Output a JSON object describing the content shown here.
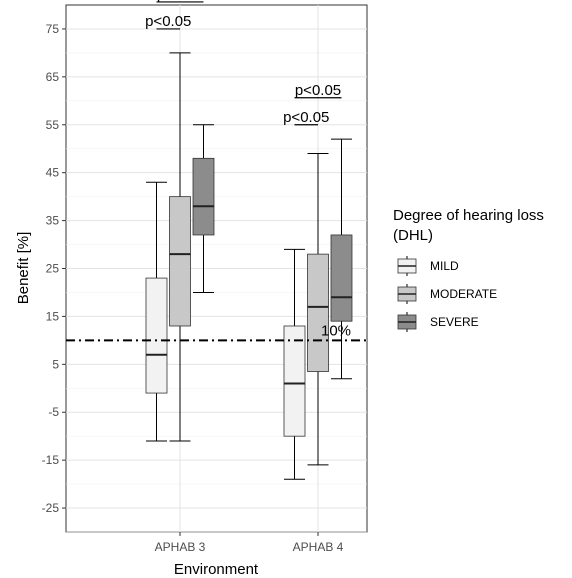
{
  "chart_data": {
    "type": "boxplot",
    "xlabel": "Environment",
    "ylabel": "Benefit [%]",
    "ylim": [
      -30,
      80
    ],
    "yticks": [
      75,
      65,
      55,
      45,
      35,
      25,
      15,
      5,
      -5,
      -15,
      -25
    ],
    "grid": true,
    "legend_placement": "right",
    "categories": [
      "APHAB 3",
      "APHAB 4"
    ],
    "legend": {
      "title_line1": "Degree of hearing loss",
      "title_line2": "(DHL)"
    },
    "series": [
      {
        "name": "MILD",
        "color": "#f2f2f2",
        "boxes": [
          {
            "whisker_low": -11,
            "q1": -1,
            "median": 7,
            "q3": 23,
            "whisker_high": 43
          },
          {
            "whisker_low": -19,
            "q1": -10,
            "median": 1,
            "q3": 13,
            "whisker_high": 29
          }
        ]
      },
      {
        "name": "MODERATE",
        "color": "#c8c8c8",
        "boxes": [
          {
            "whisker_low": -11,
            "q1": 13,
            "median": 28,
            "q3": 40,
            "whisker_high": 70
          },
          {
            "whisker_low": -16,
            "q1": 3.5,
            "median": 17,
            "q3": 28,
            "whisker_high": 49
          }
        ]
      },
      {
        "name": "SEVERE",
        "color": "#8c8c8c",
        "boxes": [
          {
            "whisker_low": 20,
            "q1": 32,
            "median": 38,
            "q3": 48,
            "whisker_high": 55
          },
          {
            "whisker_low": 2,
            "q1": 14,
            "median": 19,
            "q3": 32,
            "whisker_high": 52
          }
        ]
      }
    ],
    "reference_line": {
      "value": 10,
      "label": "10%",
      "style": "dash-dot"
    },
    "annotations": [
      {
        "text": "p<0.05",
        "group": 0,
        "from": "MILD",
        "to": "MODERATE",
        "level": 1
      },
      {
        "text": "p<0.05",
        "group": 0,
        "from": "MILD",
        "to": "SEVERE",
        "level": 2
      },
      {
        "text": "p<0.05",
        "group": 1,
        "from": "MILD",
        "to": "MODERATE",
        "level": 1
      },
      {
        "text": "p<0.05",
        "group": 1,
        "from": "MILD",
        "to": "SEVERE",
        "level": 2
      }
    ]
  }
}
